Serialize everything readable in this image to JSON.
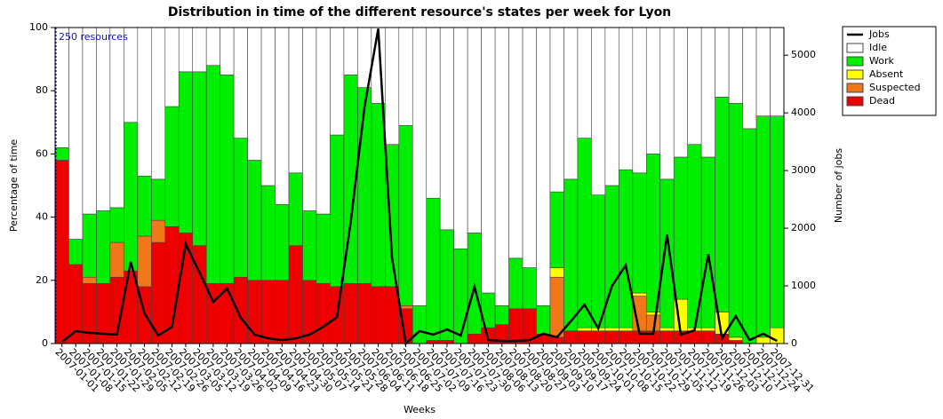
{
  "chart_data": {
    "type": "bar",
    "stacked": true,
    "title": "Distribution in time of the different resource's states per week for Lyon",
    "xlabel": "Weeks",
    "ylabel": "Percentage of time",
    "y2label": "Number of jobs",
    "annotation": "250 resources",
    "legend": "top-right",
    "categories": [
      "2007-01-01",
      "2007-01-08",
      "2007-01-15",
      "2007-01-22",
      "2007-01-29",
      "2007-02-05",
      "2007-02-12",
      "2007-02-19",
      "2007-02-26",
      "2007-03-05",
      "2007-03-12",
      "2007-03-19",
      "2007-03-26",
      "2007-04-02",
      "2007-04-09",
      "2007-04-16",
      "2007-04-23",
      "2007-04-30",
      "2007-05-07",
      "2007-05-14",
      "2007-05-21",
      "2007-05-28",
      "2007-06-04",
      "2007-06-11",
      "2007-06-18",
      "2007-06-25",
      "2007-07-02",
      "2007-07-09",
      "2007-07-16",
      "2007-07-23",
      "2007-07-30",
      "2007-08-06",
      "2007-08-13",
      "2007-08-20",
      "2007-08-27",
      "2007-09-03",
      "2007-09-10",
      "2007-09-17",
      "2007-09-24",
      "2007-10-01",
      "2007-10-08",
      "2007-10-15",
      "2007-10-22",
      "2007-10-29",
      "2007-11-05",
      "2007-11-12",
      "2007-11-19",
      "2007-11-26",
      "2007-12-03",
      "2007-12-10",
      "2007-12-17",
      "2007-12-24",
      "2007-12-31"
    ],
    "ylim": [
      0,
      100
    ],
    "yticks": [
      0,
      20,
      40,
      60,
      80,
      100
    ],
    "y2lim": [
      0,
      5480
    ],
    "y2ticks": [
      0,
      1000,
      2000,
      3000,
      4000,
      5000
    ],
    "series": [
      {
        "name": "Jobs",
        "type": "line",
        "axis": "y2",
        "color": "#000000",
        "values": [
          30,
          215,
          185,
          170,
          155,
          1415,
          520,
          140,
          290,
          1725,
          1230,
          720,
          955,
          445,
          155,
          90,
          60,
          90,
          155,
          290,
          460,
          2110,
          4100,
          5460,
          1490,
          0,
          215,
          155,
          245,
          140,
          985,
          60,
          45,
          45,
          60,
          170,
          110,
          385,
          675,
          260,
          1000,
          1355,
          170,
          170,
          1890,
          155,
          230,
          1550,
          90,
          475,
          60,
          170,
          45
        ]
      },
      {
        "name": "Idle",
        "color": "#ffffff",
        "values": [
          38,
          67,
          59,
          58,
          57,
          30,
          47,
          48,
          25,
          14,
          14,
          12,
          15,
          35,
          42,
          50,
          56,
          46,
          58,
          59,
          34,
          15,
          19,
          24,
          37,
          31,
          88,
          54,
          64,
          70,
          65,
          84,
          88,
          73,
          76,
          88,
          52,
          48,
          35,
          53,
          50,
          45,
          46,
          40,
          48,
          41,
          37,
          41,
          22,
          24,
          32,
          28,
          28
        ]
      },
      {
        "name": "Work",
        "color": "#00ee00",
        "values": [
          4,
          8,
          20,
          23,
          11,
          47,
          19,
          13,
          38,
          51,
          55,
          69,
          66,
          44,
          38,
          30,
          24,
          23,
          22,
          22,
          48,
          66,
          62,
          58,
          45,
          57,
          12,
          45,
          35,
          30,
          32,
          11,
          6,
          16,
          13,
          9,
          24,
          48,
          60,
          42,
          45,
          50,
          38,
          50,
          47,
          45,
          58,
          54,
          68,
          74,
          68,
          70,
          67
        ]
      },
      {
        "name": "Absent",
        "color": "#ffff00",
        "values": [
          0,
          0,
          0,
          0,
          0,
          0,
          0,
          0,
          0,
          0,
          0,
          0,
          0,
          0,
          0,
          0,
          0,
          0,
          0,
          0,
          0,
          0,
          0,
          0,
          0,
          0,
          0,
          0,
          0,
          0,
          0,
          0,
          0,
          0,
          0,
          0,
          3,
          0,
          1,
          1,
          1,
          1,
          1,
          1,
          1,
          10,
          1,
          1,
          7,
          1,
          0,
          2,
          5
        ]
      },
      {
        "name": "Suspected",
        "color": "#f07818",
        "values": [
          0,
          0,
          2,
          0,
          11,
          0,
          16,
          7,
          0,
          0,
          0,
          0,
          0,
          0,
          0,
          0,
          0,
          0,
          0,
          0,
          0,
          0,
          0,
          0,
          0,
          1,
          0,
          0,
          0,
          0,
          0,
          0,
          0,
          0,
          0,
          0,
          19,
          0,
          0,
          0,
          0,
          0,
          11,
          5,
          0,
          0,
          0,
          0,
          0,
          0,
          0,
          0,
          0
        ]
      },
      {
        "name": "Dead",
        "color": "#ee0000",
        "values": [
          58,
          25,
          19,
          19,
          21,
          23,
          18,
          32,
          37,
          35,
          31,
          19,
          19,
          21,
          20,
          20,
          20,
          31,
          20,
          19,
          18,
          19,
          19,
          18,
          18,
          11,
          0,
          1,
          1,
          0,
          3,
          5,
          6,
          11,
          11,
          3,
          2,
          4,
          4,
          4,
          4,
          4,
          4,
          4,
          4,
          4,
          4,
          4,
          3,
          1,
          0,
          0,
          0
        ]
      }
    ]
  }
}
